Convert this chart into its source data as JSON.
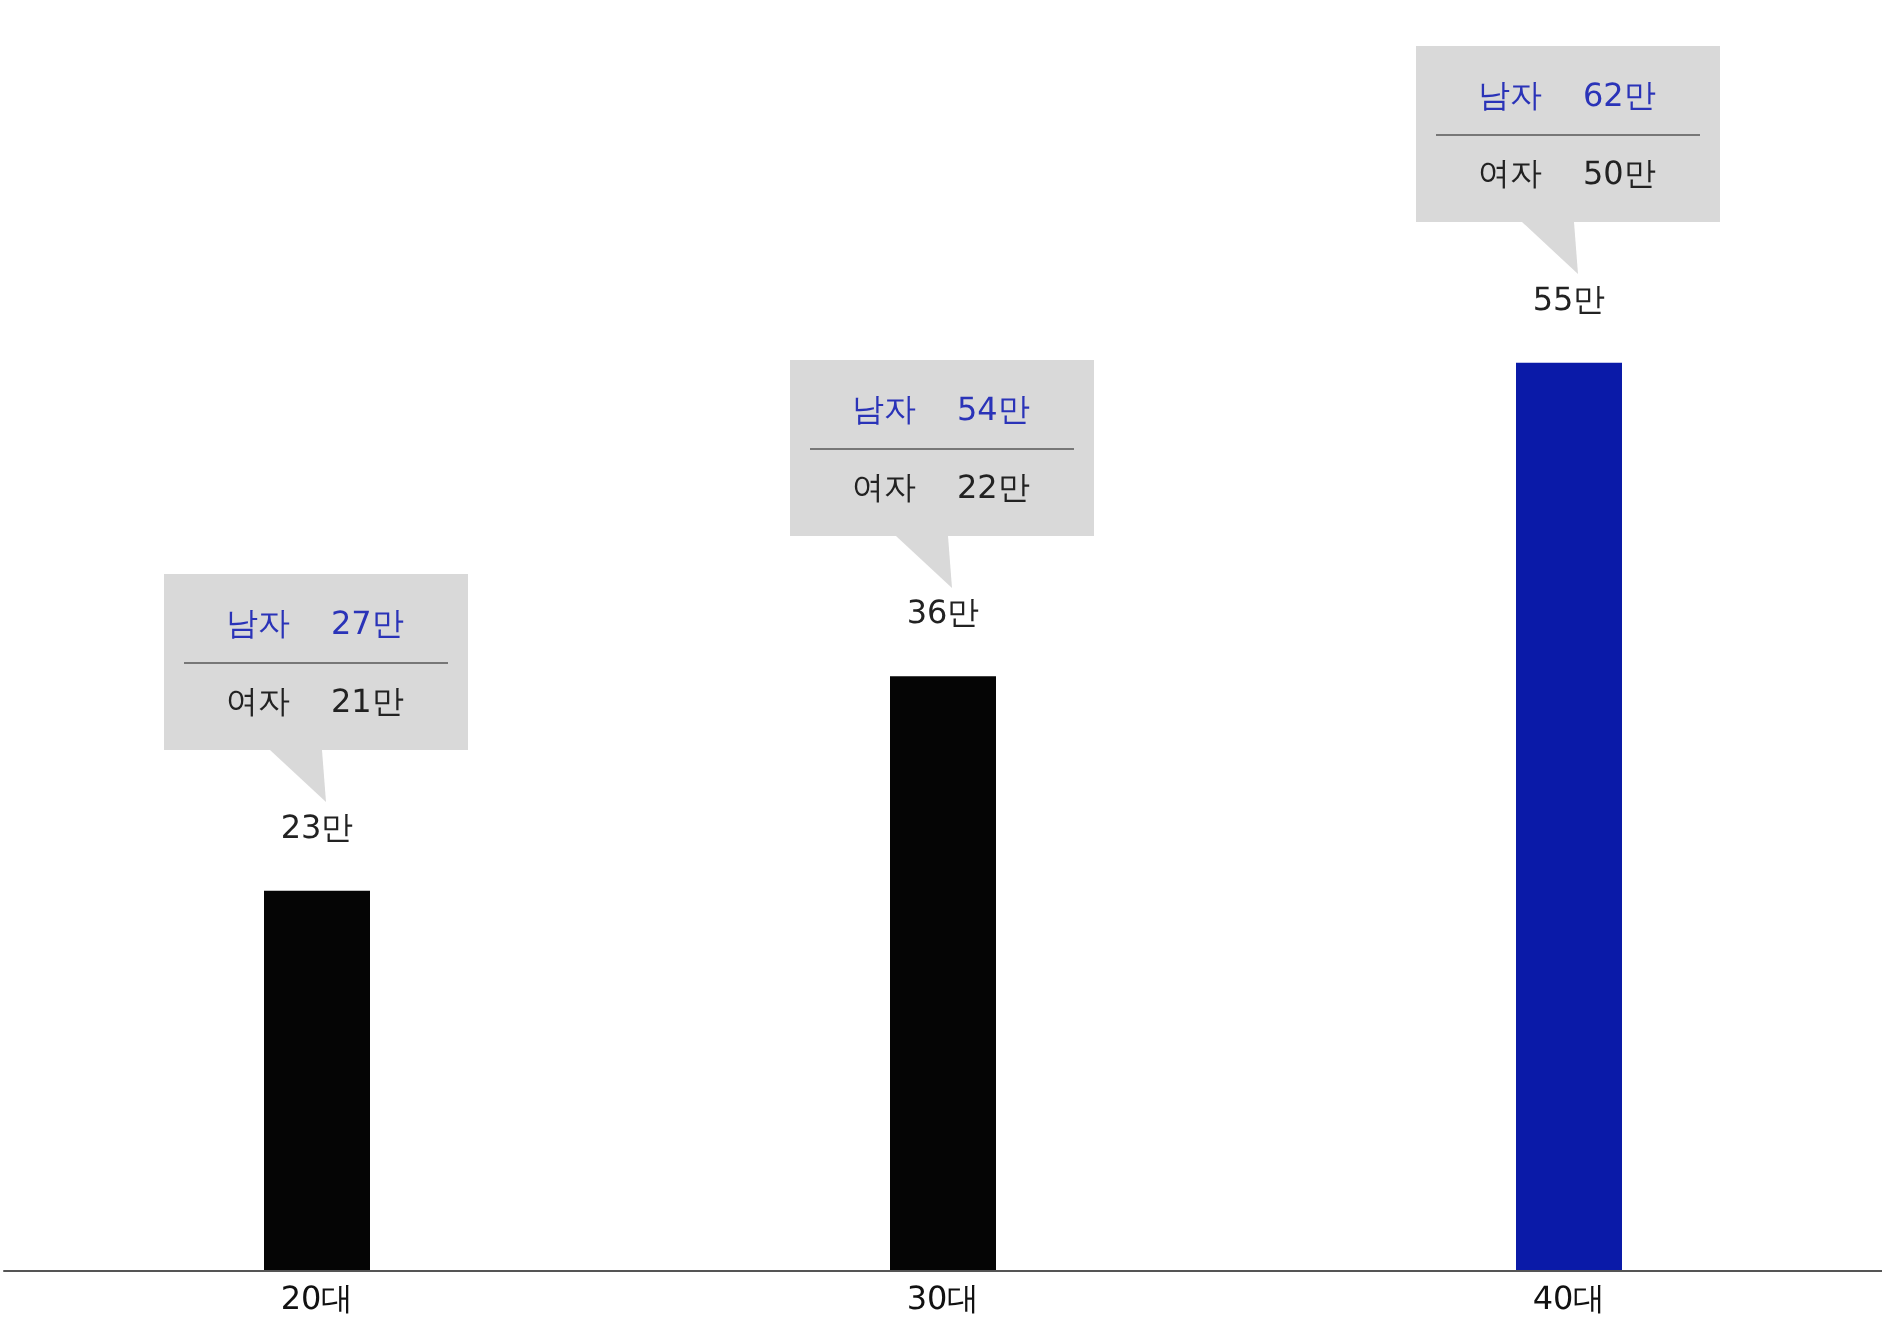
{
  "chart_data": {
    "type": "bar",
    "categories": [
      "20대",
      "30대",
      "40대"
    ],
    "values": [
      23,
      36,
      55
    ],
    "colors": [
      "#050505",
      "#050505",
      "#0a1aa8"
    ],
    "value_labels": [
      "23만",
      "36만",
      "55만"
    ],
    "tick_labels": "x",
    "annotations": [
      "남자 27만",
      "여자 21만",
      "남자 54만",
      "여자 22만",
      "남자 62만",
      "여자 50만"
    ]
  }
}
